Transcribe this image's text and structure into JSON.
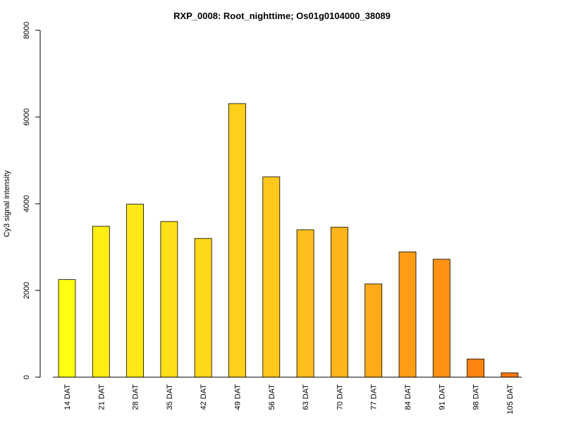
{
  "chart_data": {
    "type": "bar",
    "title": "RXP_0008: Root_nighttime; Os01g0104000_38089",
    "xlabel": "",
    "ylabel": "Cy3 signal intensity",
    "ylim": [
      0,
      8000
    ],
    "yticks": [
      0,
      2000,
      4000,
      6000,
      8000
    ],
    "categories": [
      "14 DAT",
      "21 DAT",
      "28 DAT",
      "35 DAT",
      "42 DAT",
      "49 DAT",
      "56 DAT",
      "63 DAT",
      "70 DAT",
      "77 DAT",
      "84 DAT",
      "91 DAT",
      "98 DAT",
      "105 DAT"
    ],
    "values": [
      2250,
      3480,
      3990,
      3590,
      3200,
      6310,
      4620,
      3400,
      3460,
      2150,
      2890,
      2720,
      420,
      100
    ],
    "colors": [
      "#FFFF10",
      "#FFEE14",
      "#FFE816",
      "#FFE018",
      "#FFD81A",
      "#FFD01B",
      "#FFC81B",
      "#FFBE1B",
      "#FFB41A",
      "#FFAA18",
      "#FF9E16",
      "#FF9214",
      "#FF8410",
      "#FF760C"
    ],
    "grid": false,
    "legend": "none"
  }
}
